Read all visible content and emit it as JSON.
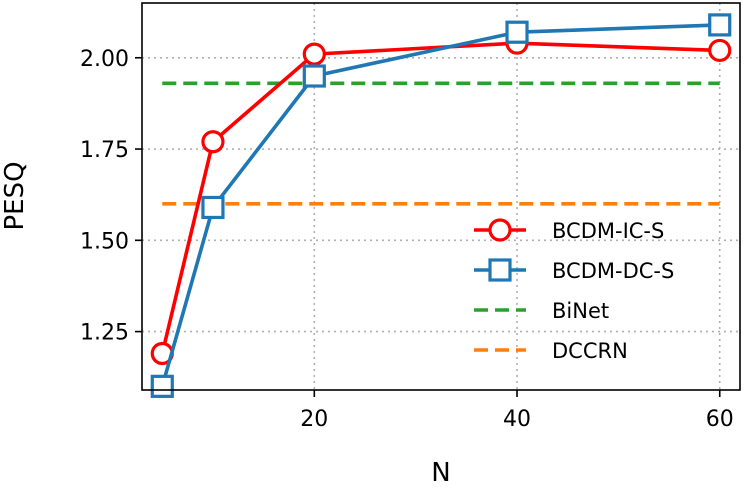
{
  "chart_data": {
    "type": "line",
    "title": "",
    "xlabel": "N",
    "ylabel": "PESQ",
    "xlim": [
      3,
      62
    ],
    "ylim": [
      1.09,
      2.15
    ],
    "xticks": [
      20,
      40,
      60
    ],
    "yticks": [
      1.25,
      1.5,
      1.75,
      2.0
    ],
    "xtick_labels": [
      "20",
      "40",
      "60"
    ],
    "ytick_labels": [
      "1.25",
      "1.50",
      "1.75",
      "2.00"
    ],
    "grid": true,
    "legend_position": "lower-right",
    "series": [
      {
        "name": "BCDM-IC-S",
        "style": "line-circle",
        "color": "#ff0000",
        "x": [
          5,
          10,
          20,
          40,
          60
        ],
        "y": [
          1.19,
          1.77,
          2.01,
          2.04,
          2.02
        ]
      },
      {
        "name": "BCDM-DC-S",
        "style": "line-square",
        "color": "#1f77b4",
        "x": [
          5,
          10,
          20,
          40,
          60
        ],
        "y": [
          1.1,
          1.59,
          1.95,
          2.07,
          2.09
        ]
      },
      {
        "name": "BiNet",
        "style": "dashed",
        "color": "#2ca02c",
        "x": [
          5,
          60
        ],
        "y": [
          1.93,
          1.93
        ]
      },
      {
        "name": "DCCRN",
        "style": "dashed",
        "color": "#ff7f0e",
        "x": [
          5,
          60
        ],
        "y": [
          1.6,
          1.6
        ]
      }
    ]
  }
}
